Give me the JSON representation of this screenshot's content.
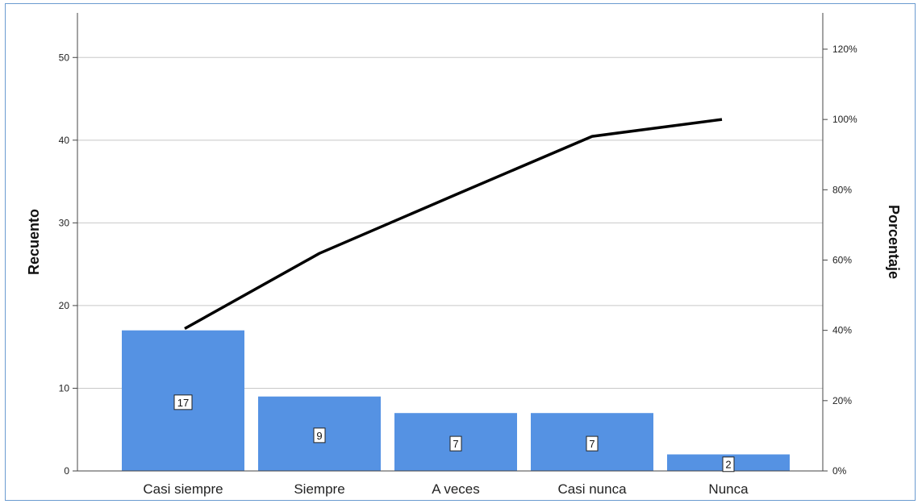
{
  "chart_data": {
    "type": "bar",
    "categories": [
      "Casi siempre",
      "Siempre",
      "A veces",
      "Casi nunca",
      "Nunca"
    ],
    "values": [
      17,
      9,
      7,
      7,
      2
    ],
    "data_labels": [
      "17",
      "9",
      "7",
      "7",
      "2"
    ],
    "bar_color": "#5592e3",
    "ylabel": "Recuento",
    "ylim": [
      0,
      55
    ],
    "yticks": [
      0,
      10,
      20,
      30,
      40,
      50
    ],
    "y2label": "Porcentaje",
    "y2lim": [
      0,
      129.4
    ],
    "y2ticks": [
      0,
      20,
      40,
      60,
      80,
      100,
      120
    ],
    "y2tick_labels": [
      "0%",
      "20%",
      "40%",
      "60%",
      "80%",
      "100%",
      "120%"
    ],
    "cumulative_percent": [
      40.5,
      61.9,
      78.6,
      95.2,
      100
    ],
    "grid": true
  }
}
